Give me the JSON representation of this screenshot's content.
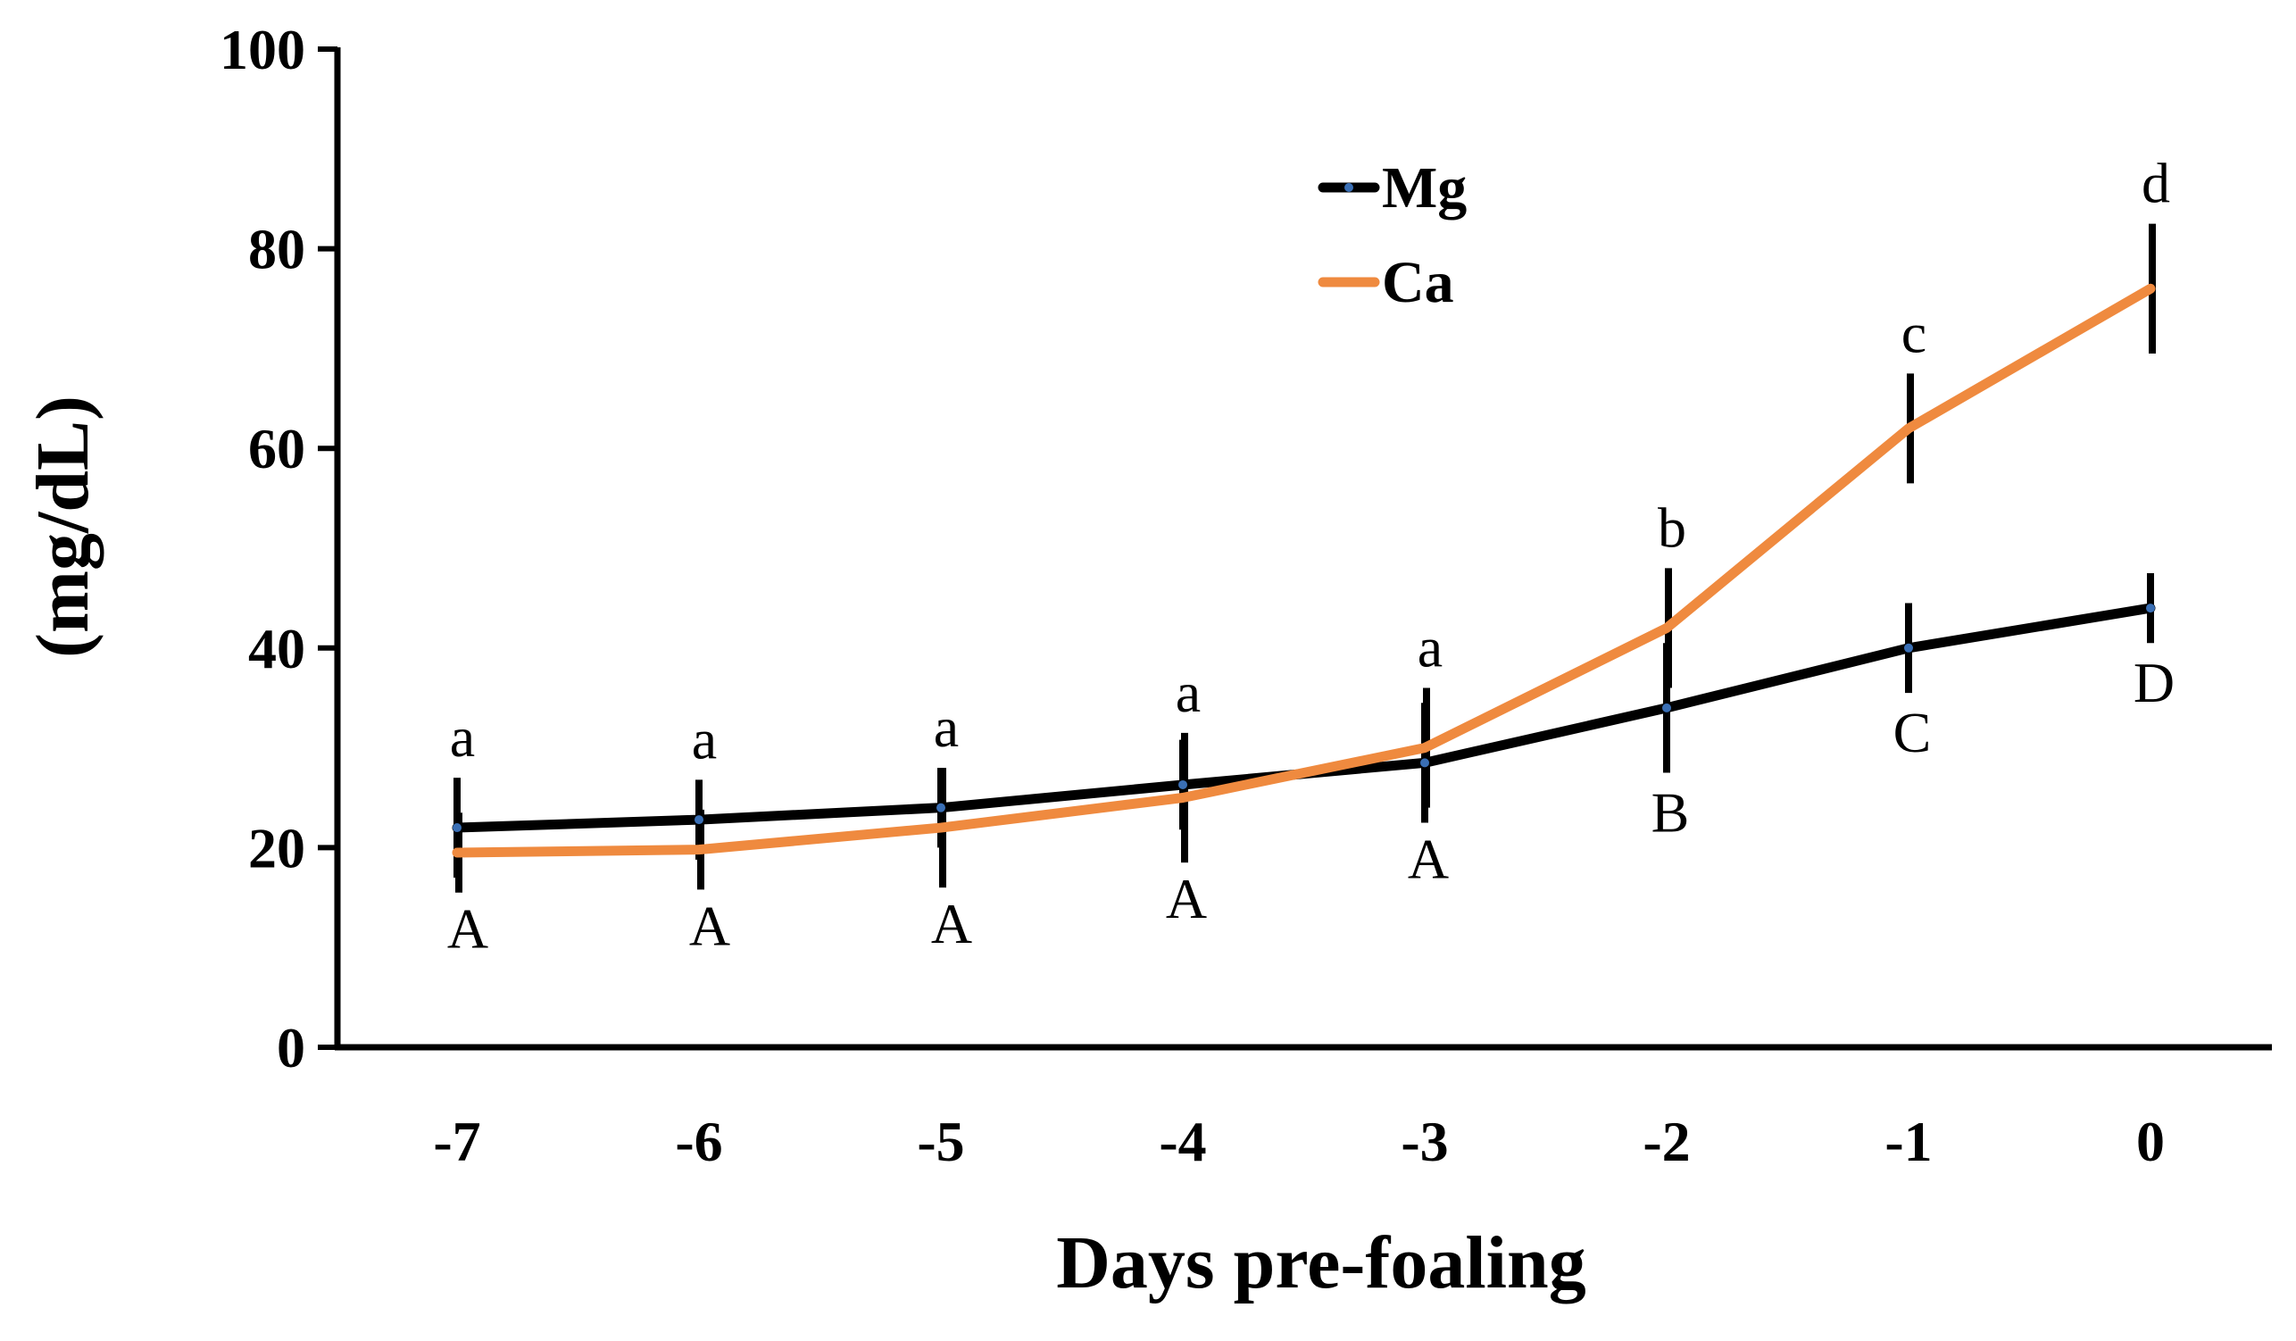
{
  "chart_data": {
    "type": "line",
    "title": "",
    "xlabel": "Days pre-foaling",
    "ylabel": "(mg/dL)",
    "ylim": [
      0,
      100
    ],
    "y_ticks": [
      "0",
      "20",
      "40",
      "60",
      "80",
      "100"
    ],
    "y_tick_values": [
      0,
      20,
      40,
      60,
      80,
      100
    ],
    "categories": [
      "-7",
      "-6",
      "-5",
      "-4",
      "-3",
      "-2",
      "-1",
      "0"
    ],
    "legend_position": "top-center",
    "series": [
      {
        "name": "Mg",
        "color": "#000000",
        "marker_color": "#3a6fb5",
        "values": [
          22,
          22.8,
          24,
          26.3,
          28.5,
          34,
          40,
          44
        ],
        "error": [
          5,
          4,
          4,
          4.5,
          6,
          6.5,
          4.5,
          3.5
        ],
        "letters": [
          "A",
          "A",
          "A",
          "A",
          "A",
          "B",
          "C",
          "D"
        ]
      },
      {
        "name": "Ca",
        "color": "#ef8a3f",
        "values": [
          19.5,
          19.8,
          22,
          25,
          30,
          42,
          62,
          76
        ],
        "error": [
          4,
          4,
          6,
          6.5,
          6,
          6,
          5.5,
          6.5
        ],
        "letters": [
          "a",
          "a",
          "a",
          "a",
          "a",
          "b",
          "c",
          "d"
        ]
      }
    ]
  }
}
